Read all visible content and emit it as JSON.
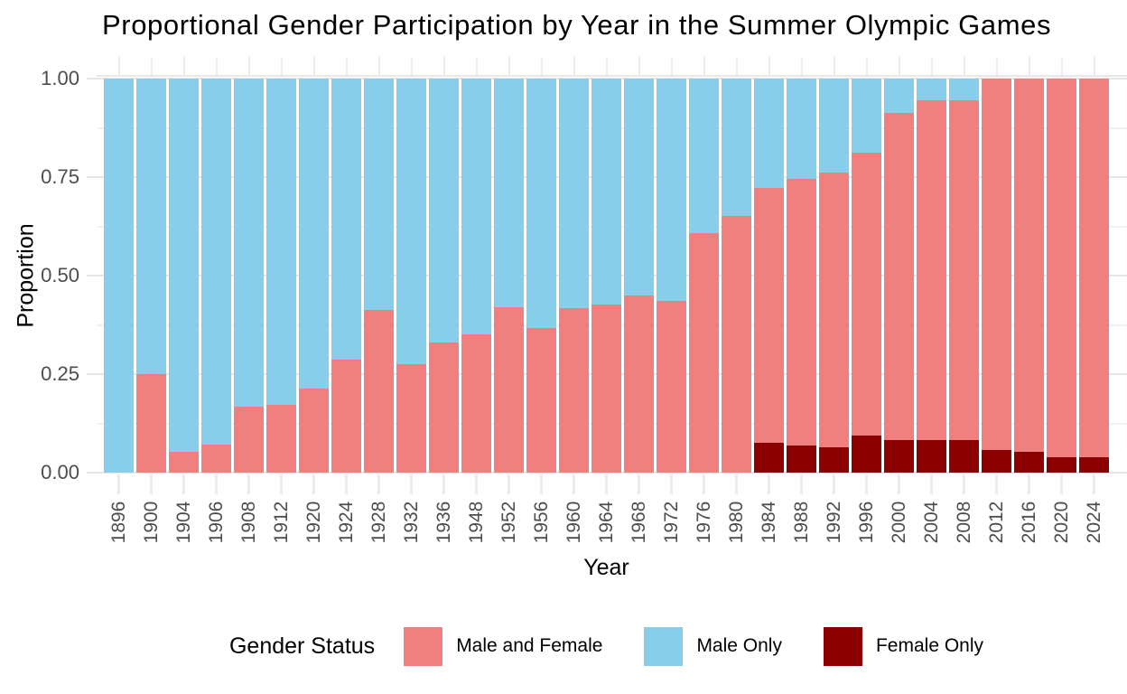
{
  "chart_data": {
    "type": "bar",
    "stacked": true,
    "title": "Proportional Gender Participation by Year in the Summer Olympic Games",
    "xlabel": "Year",
    "ylabel": "Proportion",
    "ylim": [
      0,
      1
    ],
    "grid": true,
    "legend_position": "bottom",
    "ytick_labels": [
      "0.00",
      "0.25",
      "0.50",
      "0.75",
      "1.00"
    ],
    "ytick_values": [
      0,
      0.25,
      0.5,
      0.75,
      1.0
    ],
    "minor_gridline_values": [
      0.125,
      0.375,
      0.625,
      0.875
    ],
    "categories": [
      "1896",
      "1900",
      "1904",
      "1906",
      "1908",
      "1912",
      "1920",
      "1924",
      "1928",
      "1932",
      "1936",
      "1948",
      "1952",
      "1956",
      "1960",
      "1964",
      "1968",
      "1972",
      "1976",
      "1980",
      "1984",
      "1988",
      "1992",
      "1996",
      "2000",
      "2004",
      "2008",
      "2012",
      "2016",
      "2020",
      "2024"
    ],
    "series": [
      {
        "name": "Female Only",
        "color": "#8B0000",
        "values": [
          0,
          0,
          0,
          0,
          0,
          0,
          0,
          0,
          0,
          0,
          0,
          0,
          0,
          0,
          0,
          0,
          0,
          0,
          0,
          0,
          0.076,
          0.069,
          0.064,
          0.094,
          0.083,
          0.083,
          0.083,
          0.058,
          0.053,
          0.038,
          0.039
        ]
      },
      {
        "name": "Male and Female",
        "color": "#F08080",
        "values": [
          0,
          0.25,
          0.053,
          0.072,
          0.168,
          0.173,
          0.213,
          0.287,
          0.412,
          0.276,
          0.33,
          0.35,
          0.42,
          0.368,
          0.418,
          0.427,
          0.45,
          0.435,
          0.608,
          0.651,
          0.647,
          0.676,
          0.698,
          0.717,
          0.831,
          0.863,
          0.863,
          0.942,
          0.947,
          0.962,
          0.961
        ]
      },
      {
        "name": "Male Only",
        "color": "#87CEEB",
        "values": [
          1,
          0.75,
          0.947,
          0.928,
          0.832,
          0.827,
          0.787,
          0.713,
          0.588,
          0.724,
          0.67,
          0.65,
          0.58,
          0.632,
          0.582,
          0.573,
          0.55,
          0.565,
          0.392,
          0.349,
          0.277,
          0.255,
          0.238,
          0.189,
          0.086,
          0.054,
          0.054,
          0,
          0,
          0,
          0
        ]
      }
    ],
    "legend": {
      "title": "Gender Status",
      "items": [
        {
          "label": "Male and Female",
          "color": "#F08080"
        },
        {
          "label": "Male Only",
          "color": "#87CEEB"
        },
        {
          "label": "Female Only",
          "color": "#8B0000"
        }
      ]
    }
  },
  "style": {
    "background": "#FFFFFF",
    "grid_major_color": "#E6E6E6",
    "grid_minor_color": "#F1F1F1",
    "tick_color": "#ECECEC",
    "axis_text_color": "#4D4D4D",
    "title_color": "#000000"
  }
}
